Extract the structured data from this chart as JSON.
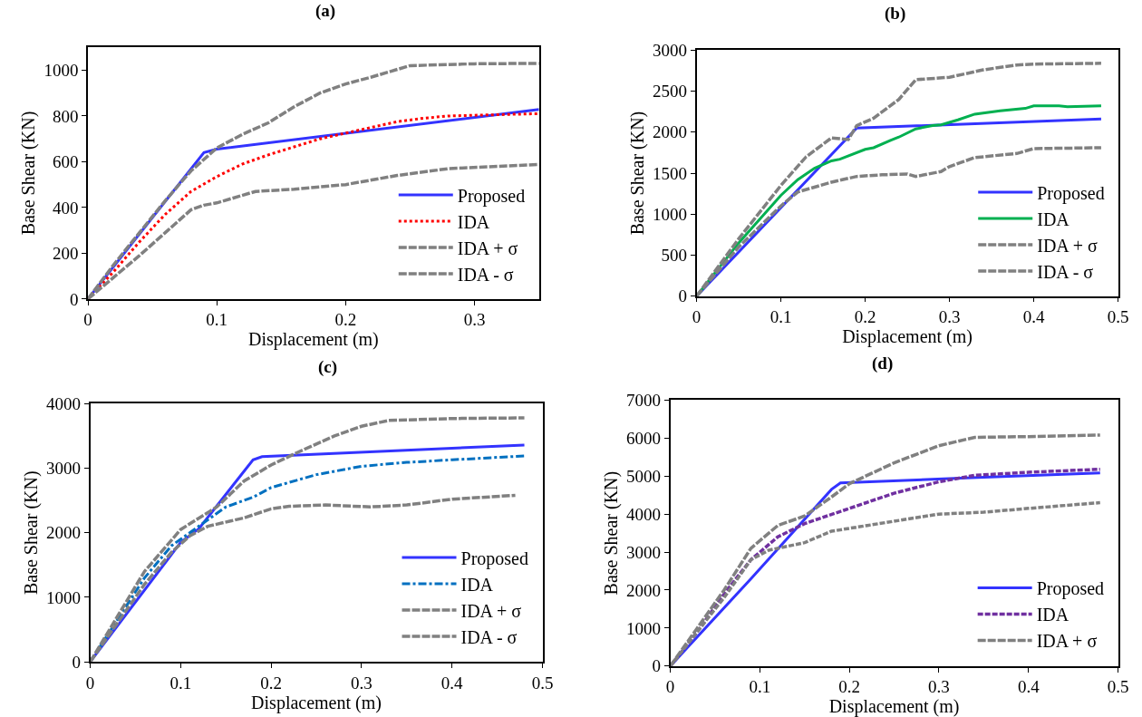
{
  "chart_data": [
    {
      "type": "line",
      "title": "(a)",
      "xlabel": "Displacement (m)",
      "ylabel": "Base Shear (KN)",
      "xlim": [
        0,
        0.35
      ],
      "xticks": [
        0,
        0.1,
        0.2,
        0.3
      ],
      "ylim": [
        0,
        1100
      ],
      "yticks": [
        0,
        200,
        400,
        600,
        800,
        1000
      ],
      "legend": "bottom right",
      "series": [
        {
          "name": "Proposed",
          "color": "#3333ff",
          "line_style": "solid",
          "x": [
            0,
            0.09,
            0.1,
            0.35
          ],
          "values": [
            0,
            640,
            655,
            828
          ]
        },
        {
          "name": "IDA",
          "color": "#ff0000",
          "line_style": "dotted",
          "x": [
            0,
            0.02,
            0.04,
            0.06,
            0.08,
            0.1,
            0.12,
            0.14,
            0.16,
            0.18,
            0.2,
            0.22,
            0.24,
            0.26,
            0.28,
            0.3,
            0.35
          ],
          "values": [
            0,
            120,
            250,
            370,
            470,
            535,
            590,
            630,
            665,
            700,
            725,
            750,
            775,
            790,
            800,
            803,
            810
          ]
        },
        {
          "name": "IDA + σ",
          "color": "#808080",
          "line_style": "dashed",
          "x": [
            0,
            0.02,
            0.04,
            0.06,
            0.08,
            0.1,
            0.12,
            0.14,
            0.16,
            0.18,
            0.2,
            0.22,
            0.25,
            0.3,
            0.35
          ],
          "values": [
            0,
            150,
            290,
            430,
            560,
            660,
            720,
            770,
            840,
            900,
            940,
            970,
            1020,
            1028,
            1030
          ]
        },
        {
          "name": "IDA - σ",
          "color": "#808080",
          "line_style": "dashed",
          "x": [
            0,
            0.02,
            0.04,
            0.06,
            0.08,
            0.09,
            0.1,
            0.13,
            0.16,
            0.2,
            0.24,
            0.28,
            0.35
          ],
          "values": [
            0,
            95,
            190,
            290,
            390,
            410,
            420,
            470,
            480,
            500,
            540,
            570,
            588
          ]
        }
      ]
    },
    {
      "type": "line",
      "title": "(b)",
      "xlabel": "Displacement (m)",
      "ylabel": "Base Shear (KN)",
      "xlim": [
        0,
        0.5
      ],
      "xticks": [
        0,
        0.1,
        0.2,
        0.3,
        0.4,
        0.5
      ],
      "ylim": [
        0,
        3000
      ],
      "yticks": [
        0,
        500,
        1000,
        1500,
        2000,
        2500,
        3000
      ],
      "legend": "bottom right",
      "series": [
        {
          "name": "Proposed",
          "color": "#3333ff",
          "line_style": "solid",
          "x": [
            0,
            0.19,
            0.48
          ],
          "values": [
            0,
            2050,
            2160
          ]
        },
        {
          "name": "IDA",
          "color": "#00b050",
          "line_style": "solid",
          "x": [
            0,
            0.05,
            0.1,
            0.12,
            0.14,
            0.16,
            0.17,
            0.2,
            0.21,
            0.23,
            0.24,
            0.26,
            0.28,
            0.29,
            0.31,
            0.33,
            0.36,
            0.39,
            0.4,
            0.43,
            0.44,
            0.48
          ],
          "values": [
            0,
            650,
            1230,
            1420,
            1560,
            1650,
            1670,
            1790,
            1810,
            1900,
            1940,
            2040,
            2080,
            2090,
            2150,
            2220,
            2260,
            2290,
            2320,
            2320,
            2310,
            2320
          ]
        },
        {
          "name": "IDA + σ",
          "color": "#808080",
          "line_style": "dashed",
          "x": [
            0,
            0.05,
            0.1,
            0.13,
            0.16,
            0.18,
            0.19,
            0.21,
            0.24,
            0.26,
            0.3,
            0.34,
            0.38,
            0.4,
            0.48
          ],
          "values": [
            0,
            700,
            1350,
            1700,
            1930,
            1910,
            2080,
            2170,
            2400,
            2640,
            2670,
            2760,
            2820,
            2830,
            2840
          ]
        },
        {
          "name": "IDA - σ",
          "color": "#808080",
          "line_style": "dashed",
          "x": [
            0,
            0.05,
            0.1,
            0.12,
            0.16,
            0.19,
            0.22,
            0.25,
            0.26,
            0.29,
            0.3,
            0.33,
            0.38,
            0.4,
            0.48
          ],
          "values": [
            0,
            600,
            1100,
            1270,
            1390,
            1460,
            1480,
            1490,
            1460,
            1520,
            1580,
            1690,
            1740,
            1800,
            1810
          ]
        }
      ]
    },
    {
      "type": "line",
      "title": "(c)",
      "xlabel": "Displacement (m)",
      "ylabel": "Base Shear (KN)",
      "xlim": [
        0,
        0.5
      ],
      "xticks": [
        0,
        0.1,
        0.2,
        0.3,
        0.4,
        0.5
      ],
      "ylim": [
        0,
        4000
      ],
      "yticks": [
        0,
        1000,
        2000,
        3000,
        4000
      ],
      "legend": "bottom right",
      "series": [
        {
          "name": "Proposed",
          "color": "#3333ff",
          "line_style": "solid",
          "x": [
            0,
            0.1,
            0.12,
            0.18,
            0.19,
            0.48
          ],
          "values": [
            0,
            1850,
            2060,
            3130,
            3180,
            3360
          ]
        },
        {
          "name": "IDA",
          "color": "#0070c0",
          "line_style": "dashdot",
          "x": [
            0,
            0.03,
            0.06,
            0.09,
            0.12,
            0.15,
            0.18,
            0.2,
            0.25,
            0.3,
            0.35,
            0.4,
            0.48
          ],
          "values": [
            0,
            650,
            1300,
            1800,
            2100,
            2400,
            2550,
            2700,
            2900,
            3030,
            3090,
            3130,
            3190
          ]
        },
        {
          "name": "IDA + σ",
          "color": "#808080",
          "line_style": "dashed",
          "x": [
            0,
            0.03,
            0.06,
            0.1,
            0.14,
            0.17,
            0.2,
            0.23,
            0.27,
            0.3,
            0.33,
            0.4,
            0.48
          ],
          "values": [
            0,
            700,
            1400,
            2050,
            2400,
            2800,
            3050,
            3250,
            3500,
            3650,
            3740,
            3770,
            3780
          ]
        },
        {
          "name": "IDA - σ",
          "color": "#808080",
          "line_style": "dashed",
          "x": [
            0,
            0.03,
            0.06,
            0.09,
            0.11,
            0.13,
            0.17,
            0.2,
            0.22,
            0.26,
            0.31,
            0.35,
            0.4,
            0.47
          ],
          "values": [
            0,
            600,
            1200,
            1700,
            1950,
            2100,
            2230,
            2370,
            2410,
            2430,
            2400,
            2430,
            2520,
            2580
          ]
        }
      ]
    },
    {
      "type": "line",
      "title": "(d)",
      "xlabel": "Displacement (m)",
      "ylabel": "Base Shear (KN)",
      "xlim": [
        0,
        0.5
      ],
      "xticks": [
        0,
        0.1,
        0.2,
        0.3,
        0.4,
        0.5
      ],
      "ylim": [
        0,
        7000
      ],
      "yticks": [
        0,
        1000,
        2000,
        3000,
        4000,
        5000,
        6000,
        7000
      ],
      "legend": "bottom right",
      "series": [
        {
          "name": "Proposed",
          "color": "#3333ff",
          "line_style": "solid",
          "x": [
            0,
            0.09,
            0.18,
            0.19,
            0.33,
            0.48
          ],
          "values": [
            0,
            2300,
            4650,
            4820,
            4950,
            5080
          ]
        },
        {
          "name": "IDA",
          "color": "#7030a0",
          "line_style": "dashed",
          "x": [
            0,
            0.03,
            0.06,
            0.09,
            0.12,
            0.15,
            0.2,
            0.25,
            0.3,
            0.34,
            0.4,
            0.48
          ],
          "values": [
            0,
            900,
            1900,
            2800,
            3400,
            3750,
            4150,
            4550,
            4850,
            5020,
            5100,
            5180
          ]
        },
        {
          "name": "IDA + σ",
          "color": "#808080",
          "line_style": "dashed",
          "x": [
            0,
            0.03,
            0.06,
            0.09,
            0.12,
            0.15,
            0.18,
            0.2,
            0.25,
            0.3,
            0.34,
            0.4,
            0.48
          ],
          "values": [
            0,
            1000,
            2000,
            3100,
            3700,
            3950,
            4450,
            4800,
            5350,
            5800,
            6020,
            6040,
            6080
          ]
        },
        {
          "color": "#808080",
          "line_style": "dashed",
          "x": [
            0,
            0.03,
            0.06,
            0.09,
            0.11,
            0.15,
            0.18,
            0.22,
            0.3,
            0.35,
            0.4,
            0.48
          ],
          "values": [
            0,
            900,
            1800,
            2800,
            3050,
            3250,
            3550,
            3700,
            4000,
            4050,
            4150,
            4300
          ]
        }
      ]
    }
  ]
}
